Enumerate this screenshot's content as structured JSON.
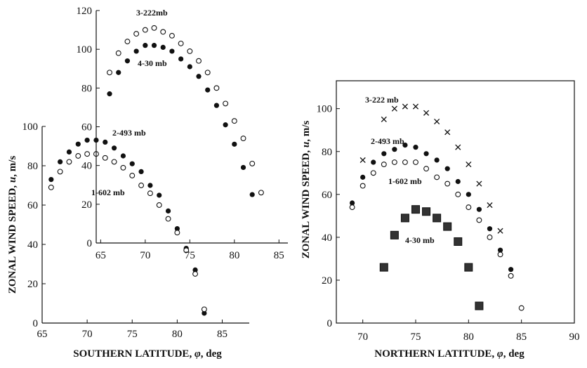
{
  "chart_data": [
    {
      "type": "scatter",
      "panel": "left-outer",
      "xlabel_prefix": "SOUTHERN LATITUDE, ",
      "xlabel_symbol": "φ",
      "xlabel_suffix": ", deg",
      "ylabel_prefix": "ZONAL WIND SPEED, ",
      "ylabel_symbol": "u",
      "ylabel_suffix": ", m/s",
      "xlim": [
        65,
        88
      ],
      "ylim": [
        0,
        100
      ],
      "xticks": [
        "65",
        "70",
        "75",
        "80",
        "85"
      ],
      "yticks": [
        "0",
        "20",
        "40",
        "60",
        "80",
        "100"
      ],
      "grid": false,
      "series": [
        {
          "name": "2-493 mb",
          "marker": "filled-circle",
          "points": [
            [
              66,
              73
            ],
            [
              67,
              82
            ],
            [
              68,
              87
            ],
            [
              69,
              91
            ],
            [
              70,
              93
            ],
            [
              71,
              93
            ],
            [
              72,
              92
            ],
            [
              73,
              89
            ],
            [
              74,
              85
            ],
            [
              75,
              81
            ],
            [
              76,
              77
            ],
            [
              77,
              70
            ],
            [
              78,
              65
            ],
            [
              79,
              57
            ],
            [
              80,
              48
            ],
            [
              81,
              38
            ],
            [
              82,
              27
            ],
            [
              83,
              5
            ]
          ]
        },
        {
          "name": "1-602 mb",
          "marker": "open-circle",
          "points": [
            [
              66,
              69
            ],
            [
              67,
              77
            ],
            [
              68,
              82
            ],
            [
              69,
              85
            ],
            [
              70,
              86
            ],
            [
              71,
              86
            ],
            [
              72,
              84
            ],
            [
              73,
              82
            ],
            [
              74,
              79
            ],
            [
              75,
              75
            ],
            [
              76,
              70
            ],
            [
              77,
              66
            ],
            [
              78,
              60
            ],
            [
              79,
              53
            ],
            [
              80,
              46
            ],
            [
              81,
              37
            ],
            [
              82,
              25
            ],
            [
              83,
              7
            ]
          ]
        }
      ]
    },
    {
      "type": "scatter",
      "panel": "left-inset",
      "xlim": [
        64.5,
        86
      ],
      "ylim": [
        0,
        120
      ],
      "xticks": [
        "65",
        "70",
        "75",
        "80",
        "85"
      ],
      "yticks": [
        "0",
        "20",
        "40",
        "60",
        "80",
        "100",
        "120"
      ],
      "grid": false,
      "series": [
        {
          "name": "4-30 mb",
          "marker": "filled-circle",
          "points": [
            [
              66,
              77
            ],
            [
              67,
              88
            ],
            [
              68,
              94
            ],
            [
              69,
              99
            ],
            [
              70,
              102
            ],
            [
              71,
              102
            ],
            [
              72,
              101
            ],
            [
              73,
              99
            ],
            [
              74,
              95
            ],
            [
              75,
              91
            ],
            [
              76,
              86
            ],
            [
              77,
              79
            ],
            [
              78,
              71
            ],
            [
              79,
              61
            ],
            [
              80,
              51
            ],
            [
              81,
              39
            ],
            [
              82,
              25
            ]
          ]
        },
        {
          "name": "3-222mb",
          "marker": "open-circle",
          "points": [
            [
              66,
              88
            ],
            [
              67,
              98
            ],
            [
              68,
              104
            ],
            [
              69,
              108
            ],
            [
              70,
              110
            ],
            [
              71,
              111
            ],
            [
              72,
              109
            ],
            [
              73,
              107
            ],
            [
              74,
              103
            ],
            [
              75,
              99
            ],
            [
              76,
              94
            ],
            [
              77,
              88
            ],
            [
              78,
              80
            ],
            [
              79,
              72
            ],
            [
              80,
              63
            ],
            [
              81,
              54
            ],
            [
              82,
              41
            ],
            [
              83,
              26
            ]
          ]
        }
      ]
    },
    {
      "type": "scatter",
      "panel": "right",
      "xlabel_prefix": "NORTHERN LATITUDE, ",
      "xlabel_symbol": "φ",
      "xlabel_suffix": ", deg",
      "ylabel_prefix": "ZONAL WIND SPEED, ",
      "ylabel_symbol": "u",
      "ylabel_suffix": ", m/s",
      "xlim": [
        67.5,
        90
      ],
      "ylim": [
        0,
        113
      ],
      "xticks": [
        "70",
        "75",
        "80",
        "85",
        "90"
      ],
      "yticks": [
        "0",
        "20",
        "40",
        "60",
        "80",
        "100"
      ],
      "grid": false,
      "series": [
        {
          "name": "3-222 mb",
          "marker": "x",
          "points": [
            [
              70,
              76
            ],
            [
              72,
              95
            ],
            [
              73,
              100
            ],
            [
              74,
              101
            ],
            [
              75,
              101
            ],
            [
              76,
              98
            ],
            [
              77,
              94
            ],
            [
              78,
              89
            ],
            [
              79,
              82
            ],
            [
              80,
              74
            ],
            [
              81,
              65
            ],
            [
              82,
              55
            ],
            [
              83,
              43
            ]
          ]
        },
        {
          "name": "2-493 mb",
          "marker": "filled-circle",
          "points": [
            [
              69,
              56
            ],
            [
              70,
              68
            ],
            [
              71,
              75
            ],
            [
              72,
              79
            ],
            [
              73,
              81
            ],
            [
              74,
              83
            ],
            [
              75,
              82
            ],
            [
              76,
              79
            ],
            [
              77,
              76
            ],
            [
              78,
              72
            ],
            [
              79,
              66
            ],
            [
              80,
              60
            ],
            [
              81,
              53
            ],
            [
              82,
              44
            ],
            [
              83,
              34
            ],
            [
              84,
              25
            ]
          ]
        },
        {
          "name": "1-602 mb",
          "marker": "open-circle",
          "points": [
            [
              69,
              54
            ],
            [
              70,
              64
            ],
            [
              71,
              70
            ],
            [
              72,
              74
            ],
            [
              73,
              75
            ],
            [
              74,
              75
            ],
            [
              75,
              75
            ],
            [
              76,
              72
            ],
            [
              77,
              68
            ],
            [
              78,
              65
            ],
            [
              79,
              60
            ],
            [
              80,
              54
            ],
            [
              81,
              48
            ],
            [
              82,
              40
            ],
            [
              83,
              32
            ],
            [
              84,
              22
            ],
            [
              85,
              7
            ]
          ]
        },
        {
          "name": "4-30 mb",
          "marker": "filled-square",
          "points": [
            [
              72,
              26
            ],
            [
              73,
              41
            ],
            [
              74,
              49
            ],
            [
              75,
              53
            ],
            [
              76,
              52
            ],
            [
              77,
              49
            ],
            [
              78,
              45
            ],
            [
              79,
              38
            ],
            [
              80,
              26
            ],
            [
              81,
              8
            ]
          ]
        }
      ]
    }
  ]
}
